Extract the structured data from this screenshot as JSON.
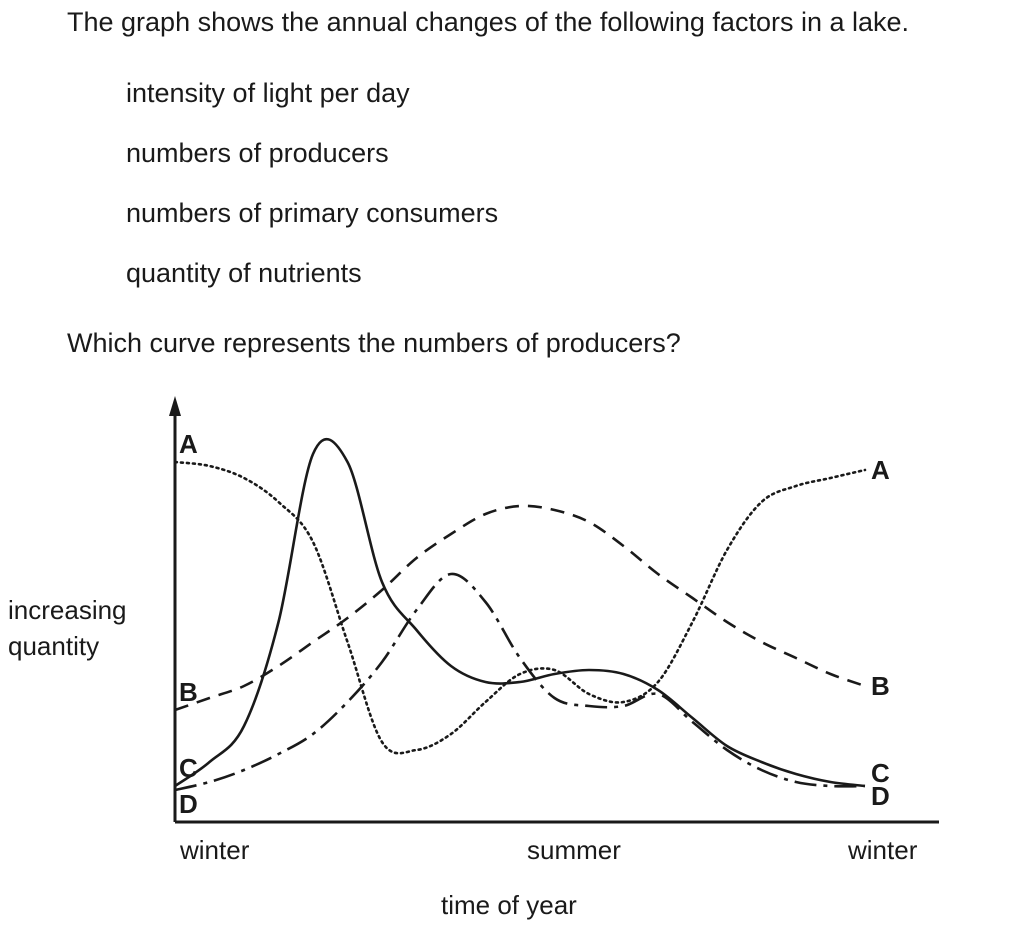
{
  "question": {
    "intro": "The graph shows the annual changes of the following factors in a lake.",
    "factors": [
      "intensity of light per day",
      "numbers of producers",
      "numbers of primary consumers",
      "quantity of nutrients"
    ],
    "ask": "Which curve represents the numbers of producers?"
  },
  "chart_data": {
    "type": "line",
    "title": "",
    "xlabel": "time of year",
    "ylabel_lines": [
      "increasing",
      "quantity"
    ],
    "x_ticks": [
      "winter",
      "summer",
      "winter"
    ],
    "x": [
      0,
      0.05,
      0.1,
      0.15,
      0.2,
      0.25,
      0.3,
      0.35,
      0.4,
      0.45,
      0.5,
      0.55,
      0.6,
      0.65,
      0.7,
      0.75,
      0.8,
      0.85,
      0.9,
      0.95,
      1.0
    ],
    "x_range": [
      0,
      1
    ],
    "y_range": [
      0,
      1
    ],
    "axis_ticks": false,
    "grid": false,
    "legend": "curve labels at both ends",
    "series": [
      {
        "name": "A",
        "style": "dotted",
        "labels": [
          "A",
          "A"
        ],
        "values": [
          0.9,
          0.89,
          0.86,
          0.8,
          0.7,
          0.45,
          0.2,
          0.18,
          0.22,
          0.3,
          0.37,
          0.38,
          0.32,
          0.3,
          0.35,
          0.5,
          0.68,
          0.8,
          0.84,
          0.86,
          0.88
        ]
      },
      {
        "name": "B",
        "style": "dashed",
        "labels": [
          "B",
          "B"
        ],
        "values": [
          0.28,
          0.31,
          0.34,
          0.39,
          0.45,
          0.51,
          0.58,
          0.66,
          0.72,
          0.77,
          0.79,
          0.78,
          0.75,
          0.69,
          0.62,
          0.56,
          0.5,
          0.45,
          0.41,
          0.37,
          0.34
        ]
      },
      {
        "name": "C",
        "style": "solid",
        "labels": [
          "C",
          "C"
        ],
        "values": [
          0.09,
          0.15,
          0.24,
          0.5,
          0.92,
          0.9,
          0.6,
          0.48,
          0.39,
          0.35,
          0.35,
          0.37,
          0.38,
          0.37,
          0.33,
          0.26,
          0.19,
          0.15,
          0.12,
          0.1,
          0.09
        ]
      },
      {
        "name": "D",
        "style": "dash-dot",
        "labels": [
          "D",
          "D"
        ],
        "values": [
          0.08,
          0.1,
          0.13,
          0.17,
          0.22,
          0.3,
          0.4,
          0.53,
          0.62,
          0.55,
          0.41,
          0.31,
          0.29,
          0.29,
          0.32,
          0.25,
          0.18,
          0.13,
          0.1,
          0.09,
          0.09
        ]
      }
    ]
  }
}
